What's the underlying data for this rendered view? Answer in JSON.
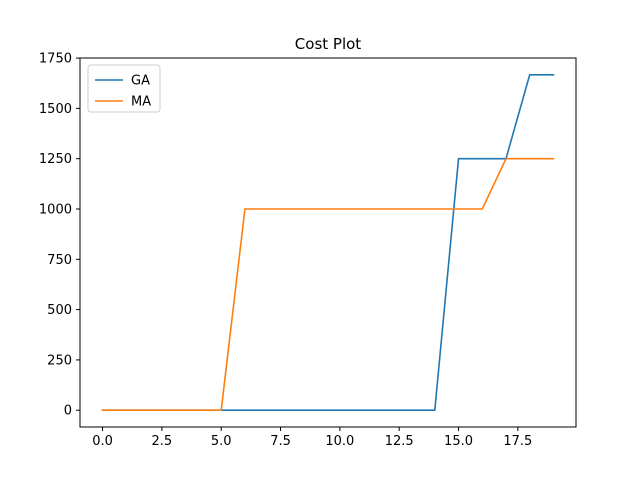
{
  "chart_data": {
    "type": "line",
    "title": "Cost Plot",
    "xlabel": "",
    "ylabel": "",
    "x": [
      0,
      1,
      2,
      3,
      4,
      5,
      6,
      7,
      8,
      9,
      10,
      11,
      12,
      13,
      14,
      15,
      16,
      17,
      18,
      19
    ],
    "series": [
      {
        "name": "GA",
        "color": "#1f77b4",
        "values": [
          0,
          0,
          0,
          0,
          0,
          0,
          0,
          0,
          0,
          0,
          0,
          0,
          0,
          0,
          0,
          1250,
          1250,
          1250,
          1667,
          1667
        ]
      },
      {
        "name": "MA",
        "color": "#ff7f0e",
        "values": [
          0,
          0,
          0,
          0,
          0,
          0,
          1000,
          1000,
          1000,
          1000,
          1000,
          1000,
          1000,
          1000,
          1000,
          1000,
          1000,
          1250,
          1250,
          1250
        ]
      }
    ],
    "xlim": [
      -0.95,
      19.95
    ],
    "ylim": [
      -83.35,
      1750.35
    ],
    "xticks": [
      0,
      2.5,
      5,
      7.5,
      10,
      12.5,
      15,
      17.5
    ],
    "xtick_labels": [
      "0.0",
      "2.5",
      "5.0",
      "7.5",
      "10.0",
      "12.5",
      "15.0",
      "17.5"
    ],
    "yticks": [
      0,
      250,
      500,
      750,
      1000,
      1250,
      1500,
      1750
    ],
    "ytick_labels": [
      "0",
      "250",
      "500",
      "750",
      "1000",
      "1250",
      "1500",
      "1750"
    ],
    "grid": false,
    "legend": "top-left"
  }
}
